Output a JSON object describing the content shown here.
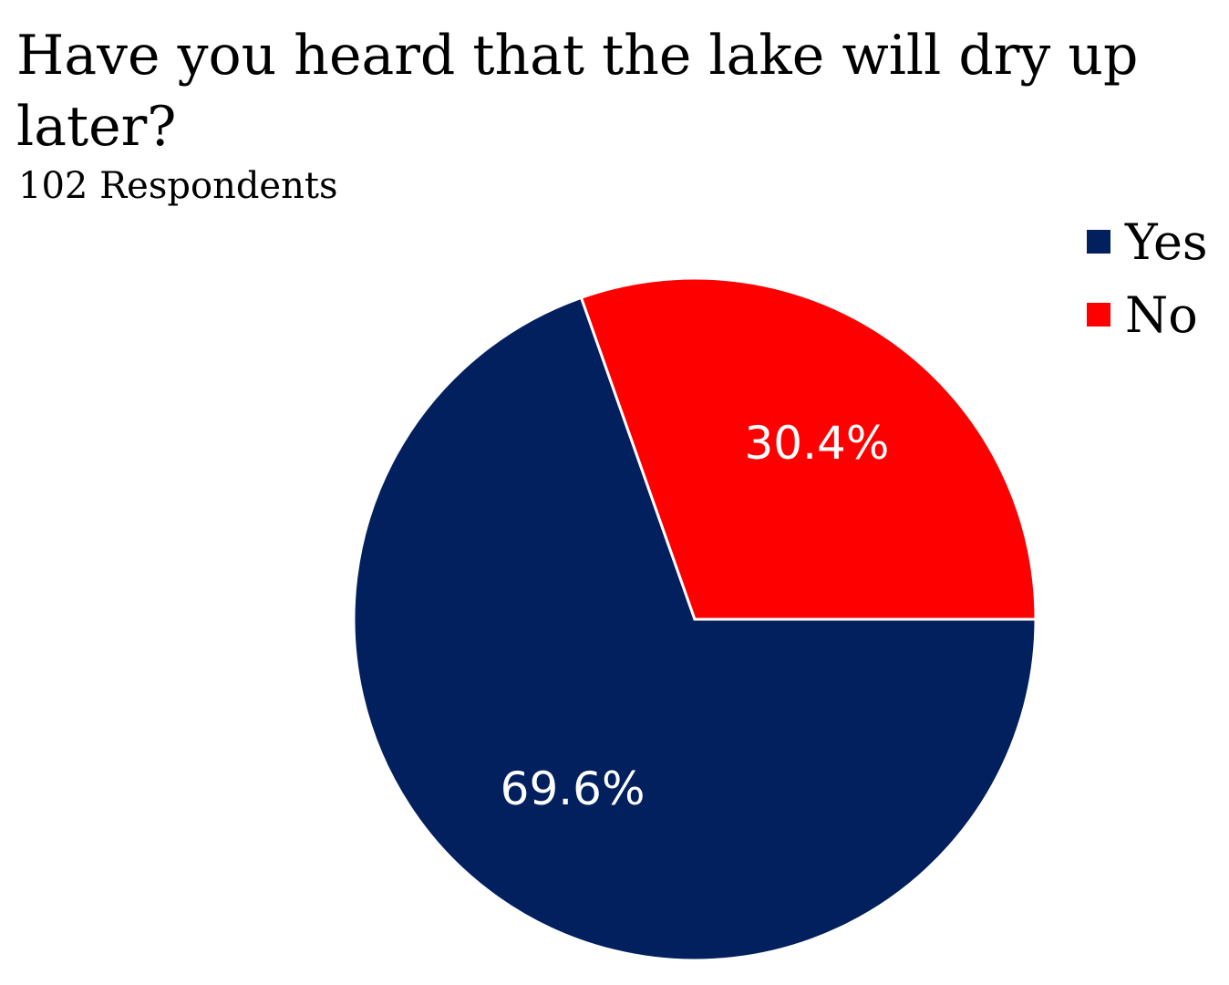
{
  "chart_data": {
    "type": "pie",
    "title": "Have you heard that the lake will dry up later?",
    "subtitle": "102 Respondents",
    "legend_position": "top-right",
    "slices": [
      {
        "name": "Yes",
        "value": 69.6,
        "label": "69.6%",
        "color": "#021F5E"
      },
      {
        "name": "No",
        "value": 30.4,
        "label": "30.4%",
        "color": "#FF0000"
      }
    ]
  }
}
